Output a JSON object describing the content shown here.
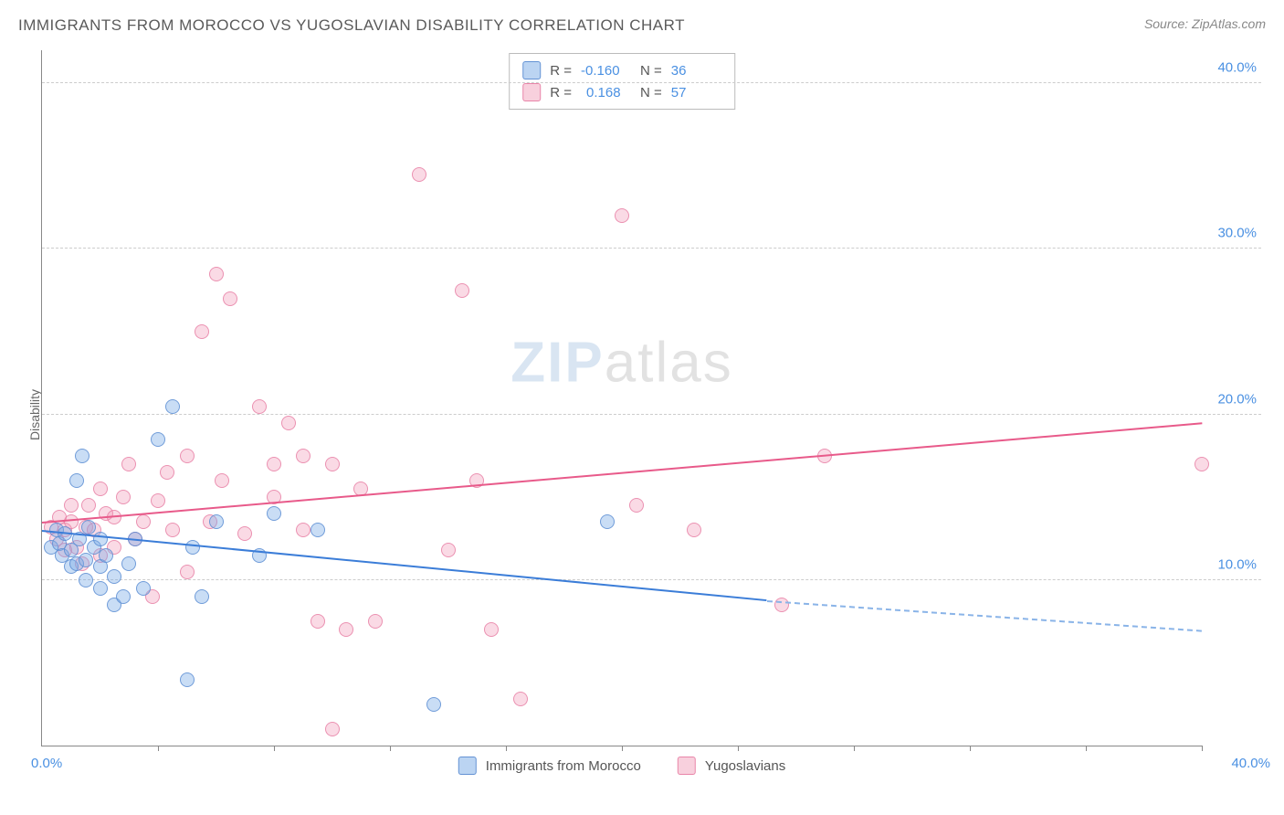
{
  "header": {
    "title": "IMMIGRANTS FROM MOROCCO VS YUGOSLAVIAN DISABILITY CORRELATION CHART",
    "source": "Source: ZipAtlas.com"
  },
  "chart": {
    "type": "scatter",
    "y_axis_label": "Disability",
    "xlim": [
      0,
      40
    ],
    "ylim": [
      0,
      42
    ],
    "x_ticks": [
      0,
      4,
      8,
      12,
      16,
      20,
      24,
      28,
      32,
      36,
      40
    ],
    "y_gridlines": [
      10,
      20,
      30,
      40
    ],
    "x_origin_label": "0.0%",
    "x_max_label": "40.0%",
    "y_tick_labels": [
      "10.0%",
      "20.0%",
      "30.0%",
      "40.0%"
    ],
    "background_color": "#ffffff",
    "grid_color": "#cccccc",
    "axis_color": "#888888",
    "tick_label_color": "#4a90e2",
    "watermark_zip": "ZIP",
    "watermark_atlas": "atlas",
    "series": {
      "morocco": {
        "label": "Immigrants from Morocco",
        "color_fill": "rgba(120,170,230,0.4)",
        "color_stroke": "rgba(90,140,210,0.8)",
        "r_value": "-0.160",
        "n_value": "36",
        "trend": {
          "x1": 0,
          "y1": 13.0,
          "x2": 25,
          "y2": 8.8,
          "dash_to_x": 40,
          "dash_to_y": 7.0,
          "color": "#3b7dd8"
        },
        "points": [
          [
            0.3,
            12.0
          ],
          [
            0.5,
            13.0
          ],
          [
            0.6,
            12.2
          ],
          [
            0.7,
            11.5
          ],
          [
            0.8,
            12.8
          ],
          [
            1.0,
            11.8
          ],
          [
            1.0,
            10.8
          ],
          [
            1.2,
            16.0
          ],
          [
            1.2,
            11.0
          ],
          [
            1.3,
            12.5
          ],
          [
            1.4,
            17.5
          ],
          [
            1.5,
            11.2
          ],
          [
            1.5,
            10.0
          ],
          [
            1.6,
            13.2
          ],
          [
            1.8,
            12.0
          ],
          [
            2.0,
            10.8
          ],
          [
            2.0,
            9.5
          ],
          [
            2.2,
            11.5
          ],
          [
            2.5,
            10.2
          ],
          [
            2.5,
            8.5
          ],
          [
            2.8,
            9.0
          ],
          [
            3.0,
            11.0
          ],
          [
            3.2,
            12.5
          ],
          [
            3.5,
            9.5
          ],
          [
            4.0,
            18.5
          ],
          [
            4.5,
            20.5
          ],
          [
            5.0,
            4.0
          ],
          [
            5.2,
            12.0
          ],
          [
            5.5,
            9.0
          ],
          [
            6.0,
            13.5
          ],
          [
            7.5,
            11.5
          ],
          [
            8.0,
            14.0
          ],
          [
            9.5,
            13.0
          ],
          [
            13.5,
            2.5
          ],
          [
            19.5,
            13.5
          ],
          [
            2.0,
            12.5
          ]
        ]
      },
      "yugoslavian": {
        "label": "Yugoslavians",
        "color_fill": "rgba(240,150,180,0.35)",
        "color_stroke": "rgba(230,120,160,0.75)",
        "r_value": "0.168",
        "n_value": "57",
        "trend": {
          "x1": 0,
          "y1": 13.5,
          "x2": 40,
          "y2": 19.5,
          "color": "#e85a8a"
        },
        "points": [
          [
            0.3,
            13.2
          ],
          [
            0.5,
            12.5
          ],
          [
            0.6,
            13.8
          ],
          [
            0.8,
            13.0
          ],
          [
            0.8,
            11.8
          ],
          [
            1.0,
            13.5
          ],
          [
            1.0,
            14.5
          ],
          [
            1.2,
            12.0
          ],
          [
            1.4,
            11.0
          ],
          [
            1.5,
            13.2
          ],
          [
            1.6,
            14.5
          ],
          [
            1.8,
            13.0
          ],
          [
            2.0,
            15.5
          ],
          [
            2.0,
            11.5
          ],
          [
            2.2,
            14.0
          ],
          [
            2.5,
            13.8
          ],
          [
            2.5,
            12.0
          ],
          [
            2.8,
            15.0
          ],
          [
            3.0,
            17.0
          ],
          [
            3.2,
            12.5
          ],
          [
            3.5,
            13.5
          ],
          [
            3.8,
            9.0
          ],
          [
            4.0,
            14.8
          ],
          [
            4.3,
            16.5
          ],
          [
            4.5,
            13.0
          ],
          [
            5.0,
            17.5
          ],
          [
            5.0,
            10.5
          ],
          [
            5.5,
            25.0
          ],
          [
            5.8,
            13.5
          ],
          [
            6.0,
            28.5
          ],
          [
            6.2,
            16.0
          ],
          [
            6.5,
            27.0
          ],
          [
            7.0,
            12.8
          ],
          [
            7.5,
            20.5
          ],
          [
            8.0,
            17.0
          ],
          [
            8.0,
            15.0
          ],
          [
            8.5,
            19.5
          ],
          [
            9.0,
            13.0
          ],
          [
            9.0,
            17.5
          ],
          [
            9.5,
            7.5
          ],
          [
            10.0,
            17.0
          ],
          [
            10.0,
            1.0
          ],
          [
            10.5,
            7.0
          ],
          [
            11.0,
            15.5
          ],
          [
            11.5,
            7.5
          ],
          [
            13.0,
            34.5
          ],
          [
            14.0,
            11.8
          ],
          [
            14.5,
            27.5
          ],
          [
            15.0,
            16.0
          ],
          [
            15.5,
            7.0
          ],
          [
            16.5,
            2.8
          ],
          [
            20.0,
            32.0
          ],
          [
            20.5,
            14.5
          ],
          [
            22.5,
            13.0
          ],
          [
            25.5,
            8.5
          ],
          [
            27.0,
            17.5
          ],
          [
            40.0,
            17.0
          ]
        ]
      }
    }
  },
  "legend_box": {
    "r_label": "R =",
    "n_label": "N ="
  }
}
